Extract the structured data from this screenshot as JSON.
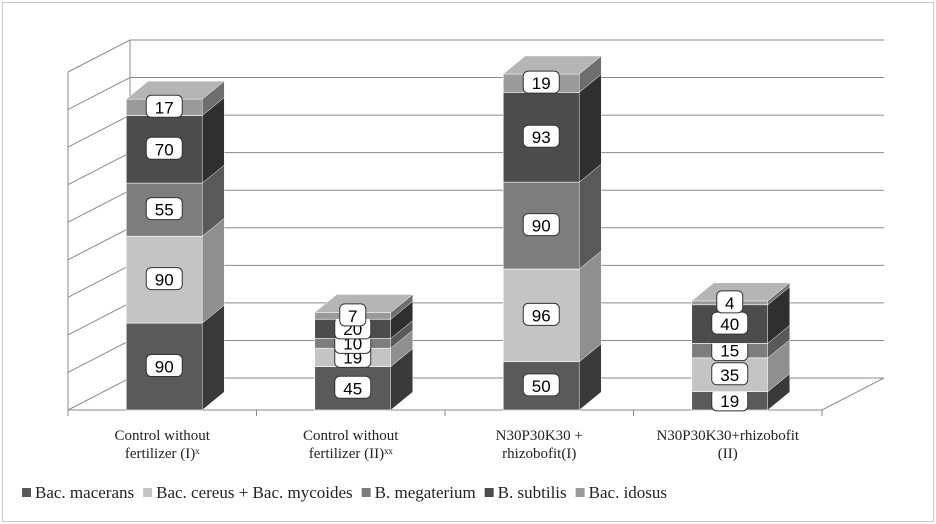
{
  "chart_data": {
    "type": "bar",
    "stacked": true,
    "style": "3d",
    "categories": [
      [
        "Control without",
        "fertilizer (I)ˣ"
      ],
      [
        "Control without",
        "fertilizer (II)ˣˣ"
      ],
      [
        "N30P30K30 +",
        "rhizobofit(I)"
      ],
      [
        "N30P30K30+rhizobofit",
        "(II)"
      ]
    ],
    "series": [
      {
        "name": "Bac. macerans",
        "values": [
          90,
          45,
          50,
          19
        ],
        "color": "#5a5a5a",
        "side": "#3a3a3a",
        "top": "#7a7a7a"
      },
      {
        "name": "Bac. cereus + Bac. mycoides",
        "values": [
          90,
          19,
          96,
          35
        ],
        "color": "#c4c4c4",
        "side": "#8f8f8f",
        "top": "#dcdcdc"
      },
      {
        "name": "B. megaterium",
        "values": [
          55,
          10,
          90,
          15
        ],
        "color": "#7d7d7d",
        "side": "#595959",
        "top": "#9a9a9a"
      },
      {
        "name": "B.  subtilis",
        "values": [
          70,
          20,
          93,
          40
        ],
        "color": "#4c4c4c",
        "side": "#2f2f2f",
        "top": "#6b6b6b"
      },
      {
        "name": "Bac.  idosus",
        "values": [
          17,
          7,
          19,
          4
        ],
        "color": "#9a9a9a",
        "side": "#6e6e6e",
        "top": "#b5b5b5"
      }
    ],
    "grid": true,
    "legend": "bottom"
  }
}
